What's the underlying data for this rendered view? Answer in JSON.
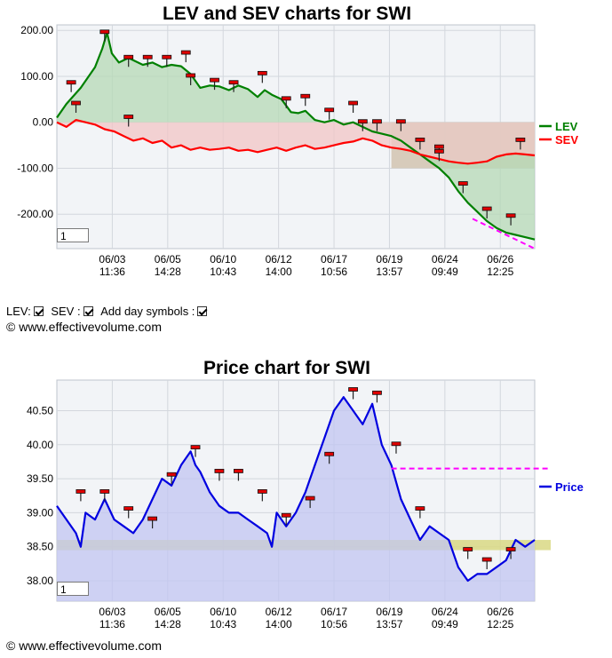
{
  "charts": [
    {
      "title": "LEV and SEV charts for SWI",
      "range_input": "1",
      "chart_data": {
        "type": "area",
        "ylim": [
          -275,
          212
        ],
        "y_ticks": [
          "200.00",
          "100.00",
          "0.00",
          "-100.00",
          "-200.00"
        ],
        "y_tick_values": [
          200,
          100,
          0,
          -100,
          -200
        ],
        "x_ticks": [
          [
            "06/03",
            "11:36"
          ],
          [
            "06/05",
            "14:28"
          ],
          [
            "06/10",
            "10:43"
          ],
          [
            "06/12",
            "14:00"
          ],
          [
            "06/17",
            "10:56"
          ],
          [
            "06/19",
            "13:57"
          ],
          [
            "06/24",
            "09:49"
          ],
          [
            "06/26",
            "12:25"
          ]
        ],
        "x_range": [
          0,
          100
        ],
        "x_tick_positions": [
          11.6,
          23.2,
          34.8,
          46.4,
          58.0,
          69.6,
          81.2,
          92.8
        ],
        "legend": "right",
        "grid": true,
        "series": [
          {
            "name": "LEV",
            "color": "#008000",
            "fill": "#b5d9b5",
            "x": [
              0,
              2,
              5,
              8,
              9.5,
              10.5,
              11.5,
              13,
              15,
              18,
              20,
              22,
              24,
              26,
              28,
              30,
              32,
              34,
              36,
              38,
              40,
              42,
              43.5,
              45,
              47,
              49,
              50.5,
              52,
              54,
              56,
              58,
              60,
              62,
              64,
              66,
              68,
              70,
              72,
              74,
              76,
              78,
              80,
              82,
              84,
              86,
              88,
              90,
              92,
              94,
              96,
              98,
              100
            ],
            "y": [
              10,
              40,
              75,
              120,
              160,
              195,
              150,
              130,
              140,
              125,
              130,
              120,
              125,
              122,
              105,
              75,
              80,
              78,
              70,
              80,
              72,
              55,
              70,
              60,
              50,
              22,
              20,
              25,
              5,
              0,
              5,
              -5,
              0,
              -10,
              -20,
              -25,
              -30,
              -40,
              -55,
              -70,
              -85,
              -100,
              -120,
              -150,
              -175,
              -195,
              -215,
              -230,
              -240,
              -245,
              -250,
              -255
            ]
          },
          {
            "name": "SEV",
            "color": "#ff0000",
            "fill": "#f1c6c6",
            "x": [
              0,
              2,
              4,
              6,
              8,
              10,
              12,
              14,
              16,
              18,
              20,
              22,
              24,
              26,
              28,
              30,
              32,
              34,
              36,
              38,
              40,
              42,
              44,
              46,
              48,
              50,
              52,
              54,
              56,
              58,
              60,
              62,
              64,
              66,
              68,
              70,
              72,
              74,
              76,
              78,
              80,
              82,
              84,
              86,
              88,
              90,
              92,
              94,
              96,
              98,
              100
            ],
            "y": [
              0,
              -10,
              5,
              0,
              -5,
              -15,
              -20,
              -30,
              -40,
              -35,
              -45,
              -40,
              -55,
              -50,
              -60,
              -55,
              -60,
              -58,
              -55,
              -62,
              -60,
              -65,
              -60,
              -55,
              -62,
              -55,
              -50,
              -58,
              -55,
              -50,
              -45,
              -42,
              -35,
              -40,
              -50,
              -55,
              -58,
              -62,
              -70,
              -75,
              -80,
              -85,
              -88,
              -90,
              -88,
              -85,
              -75,
              -70,
              -68,
              -70,
              -72
            ]
          }
        ],
        "reference_line": {
          "color": "#ff00ff",
          "x": [
            87,
            100
          ],
          "y": [
            -210,
            -275
          ]
        },
        "shaded_band": {
          "x": [
            70,
            100
          ],
          "y": [
            0,
            -100
          ],
          "fill": "#d2c3b0"
        },
        "markers": [
          [
            3,
            85
          ],
          [
            4,
            40
          ],
          [
            10,
            195
          ],
          [
            15,
            10
          ],
          [
            15,
            140
          ],
          [
            19,
            140
          ],
          [
            23,
            140
          ],
          [
            27,
            150
          ],
          [
            28,
            100
          ],
          [
            33,
            90
          ],
          [
            37,
            85
          ],
          [
            43,
            105
          ],
          [
            48,
            50
          ],
          [
            52,
            55
          ],
          [
            57,
            25
          ],
          [
            62,
            40
          ],
          [
            64,
            0
          ],
          [
            67,
            0
          ],
          [
            72,
            0
          ],
          [
            76,
            -40
          ],
          [
            80,
            -55
          ],
          [
            80,
            -65
          ],
          [
            85,
            -135
          ],
          [
            90,
            -190
          ],
          [
            95,
            -205
          ],
          [
            97,
            -40
          ]
        ]
      }
    },
    {
      "title": "Price chart for SWI",
      "range_input": "1",
      "chart_data": {
        "type": "area",
        "ylim": [
          37.7,
          40.95
        ],
        "y_ticks": [
          "40.50",
          "40.00",
          "39.50",
          "39.00",
          "38.50",
          "38.00"
        ],
        "y_tick_values": [
          40.5,
          40.0,
          39.5,
          39.0,
          38.5,
          38.0
        ],
        "x_ticks": [
          [
            "06/03",
            "11:36"
          ],
          [
            "06/05",
            "14:28"
          ],
          [
            "06/10",
            "10:43"
          ],
          [
            "06/12",
            "14:00"
          ],
          [
            "06/17",
            "10:56"
          ],
          [
            "06/19",
            "13:57"
          ],
          [
            "06/24",
            "09:49"
          ],
          [
            "06/26",
            "12:25"
          ]
        ],
        "x_range": [
          0,
          100
        ],
        "x_tick_positions": [
          11.6,
          23.2,
          34.8,
          46.4,
          58.0,
          69.6,
          81.2,
          92.8
        ],
        "legend": "right",
        "grid": true,
        "series": [
          {
            "name": "Price",
            "color": "#0000e0",
            "fill": "#c2c6f2",
            "x": [
              0,
              2,
              4,
              5,
              6,
              8,
              10,
              12,
              14,
              16,
              18,
              20,
              22,
              24,
              26,
              28,
              29,
              30,
              32,
              34,
              36,
              38,
              40,
              42,
              44,
              45,
              46,
              48,
              50,
              52,
              54,
              56,
              58,
              60,
              62,
              64,
              66,
              68,
              70,
              72,
              74,
              76,
              78,
              80,
              82,
              84,
              86,
              88,
              90,
              92,
              94,
              96,
              98,
              100
            ],
            "y": [
              39.1,
              38.9,
              38.7,
              38.5,
              39.0,
              38.9,
              39.2,
              38.9,
              38.8,
              38.7,
              38.9,
              39.2,
              39.5,
              39.4,
              39.7,
              39.9,
              39.7,
              39.6,
              39.3,
              39.1,
              39.0,
              39.0,
              38.9,
              38.8,
              38.7,
              38.5,
              39.0,
              38.8,
              39.0,
              39.3,
              39.7,
              40.1,
              40.5,
              40.7,
              40.5,
              40.3,
              40.6,
              40.0,
              39.7,
              39.2,
              38.9,
              38.6,
              38.8,
              38.7,
              38.6,
              38.2,
              38.0,
              38.1,
              38.1,
              38.2,
              38.3,
              38.6,
              38.5,
              38.6
            ]
          }
        ],
        "reference_line": {
          "color": "#ff00ff",
          "x": [
            70,
            104
          ],
          "y": [
            39.65,
            39.65
          ]
        },
        "shaded_band": {
          "x": [
            0,
            104
          ],
          "y": [
            38.45,
            38.6
          ],
          "fill": "#d9d884"
        },
        "markers": [
          [
            5,
            39.3
          ],
          [
            10,
            39.3
          ],
          [
            15,
            39.05
          ],
          [
            20,
            38.9
          ],
          [
            24,
            39.55
          ],
          [
            29,
            39.95
          ],
          [
            34,
            39.6
          ],
          [
            38,
            39.6
          ],
          [
            43,
            39.3
          ],
          [
            48,
            38.95
          ],
          [
            53,
            39.2
          ],
          [
            57,
            39.85
          ],
          [
            62,
            40.8
          ],
          [
            67,
            40.75
          ],
          [
            71,
            40.0
          ],
          [
            76,
            39.05
          ],
          [
            86,
            38.45
          ],
          [
            90,
            38.3
          ],
          [
            95,
            38.45
          ]
        ]
      }
    }
  ],
  "controls": {
    "lev_label": "LEV:",
    "sev_label": "SEV :",
    "day_symbols_label": "Add day symbols :"
  },
  "copyright": "© www.effectivevolume.com"
}
